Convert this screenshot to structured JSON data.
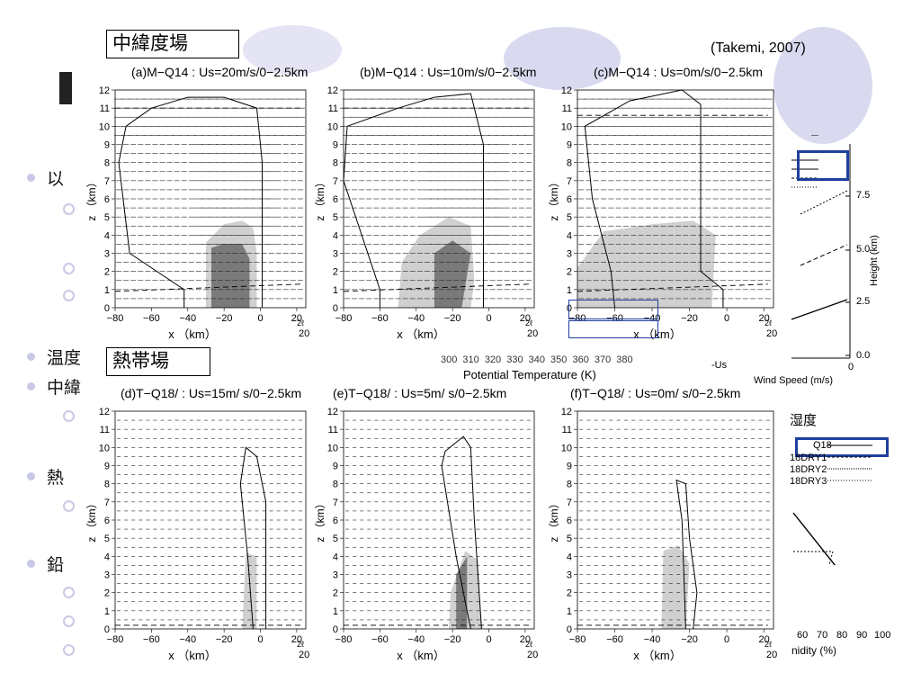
{
  "labels": {
    "midlat": "中緯度場",
    "tropical": "熱帯場",
    "citation": "(Takemi, 2007)"
  },
  "background": {
    "bullets": [
      "以",
      "温度",
      "中",
      "熱",
      "鉛"
    ],
    "left_fragment": "以",
    "temp_fragment": "温度",
    "mid_fragment": "中緯",
    "heat_fragment": "熱",
    "vert_fragment": "鉛",
    "potential_temp_label": "Potential Temperature (K)",
    "potential_temp_ticks": "300 310 320 330 340 350 360 370 380",
    "us_label": "-Us",
    "wind_speed_label": "Wind Speed (m/s)",
    "humidity_label": "湿度",
    "humidity_axis": "nidity (%)",
    "humidity_ticks": [
      "60",
      "70",
      "80",
      "90",
      "100"
    ],
    "height_label": "Height (km)",
    "height_ticks": [
      "7.5",
      "5.0",
      "2.5",
      "0.0"
    ],
    "wind_zero": "0",
    "q18_legend": [
      "Q18",
      "18DRY1",
      "18DRY2",
      "18DRY3"
    ]
  },
  "panels": [
    {
      "title": "(a)M−Q14 : Us=20m/s/0−2.5km"
    },
    {
      "title": "(b)M−Q14 : Us=10m/s/0−2.5km"
    },
    {
      "title": "(c)M−Q14 : Us=0m/s/0−2.5km"
    },
    {
      "title": "(d)T−Q18/ : Us=15m/ s/0−2.5km"
    },
    {
      "title": "(e)T−Q18/ : Us=5m/ s/0−2.5km"
    },
    {
      "title": "(f)T−Q18/ : Us=0m/ s/0−2.5km"
    }
  ],
  "axes": {
    "x_label": "x （km）",
    "z_label": "z （km）",
    "x_ticks": [
      "−80",
      "−60",
      "−40",
      "−20",
      "0",
      "20"
    ],
    "z_ticks": [
      "0",
      "1",
      "2",
      "3",
      "4",
      "5",
      "6",
      "7",
      "8",
      "9",
      "10",
      "11",
      "12"
    ],
    "vector_ref": "20",
    "vector_ref_top": "2ℓ"
  }
}
